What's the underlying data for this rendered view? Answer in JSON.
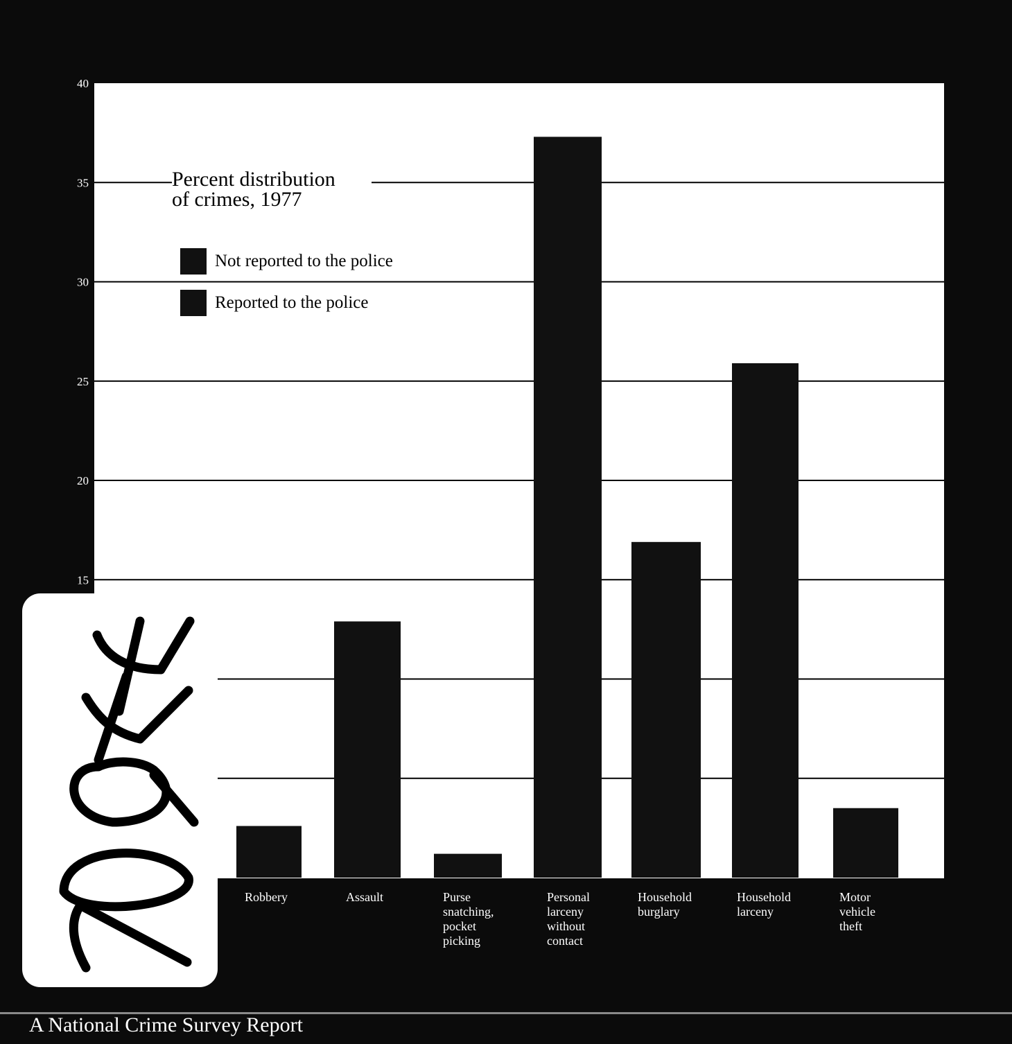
{
  "chart_data": {
    "type": "bar",
    "title": "Percent distribution\nof crimes, 1977",
    "xlabel": "",
    "ylabel": "",
    "ylim": [
      0,
      40
    ],
    "y_ticks": [
      15,
      20,
      25,
      30,
      35,
      40
    ],
    "grid": true,
    "legend_position": "top-left",
    "legend": [
      "Not reported to the police",
      "Reported to the police"
    ],
    "categories": [
      "Robbery",
      "Assault",
      "Purse\nsnatching,\npocket\npicking",
      "Personal\nlarceny\nwithout\ncontact",
      "Household\nburglary",
      "Household\nlarceny",
      "Motor\nvehicle\ntheft"
    ],
    "values": [
      2.6,
      12.9,
      1.2,
      37.3,
      16.9,
      25.9,
      3.5
    ]
  },
  "stamp": {
    "text": "709ff"
  },
  "footer": {
    "text": "A National Crime Survey Report"
  },
  "colors": {
    "background": "#0b0b0b",
    "panel": "#ffffff",
    "bars": "#111111",
    "grid": "#000000"
  }
}
